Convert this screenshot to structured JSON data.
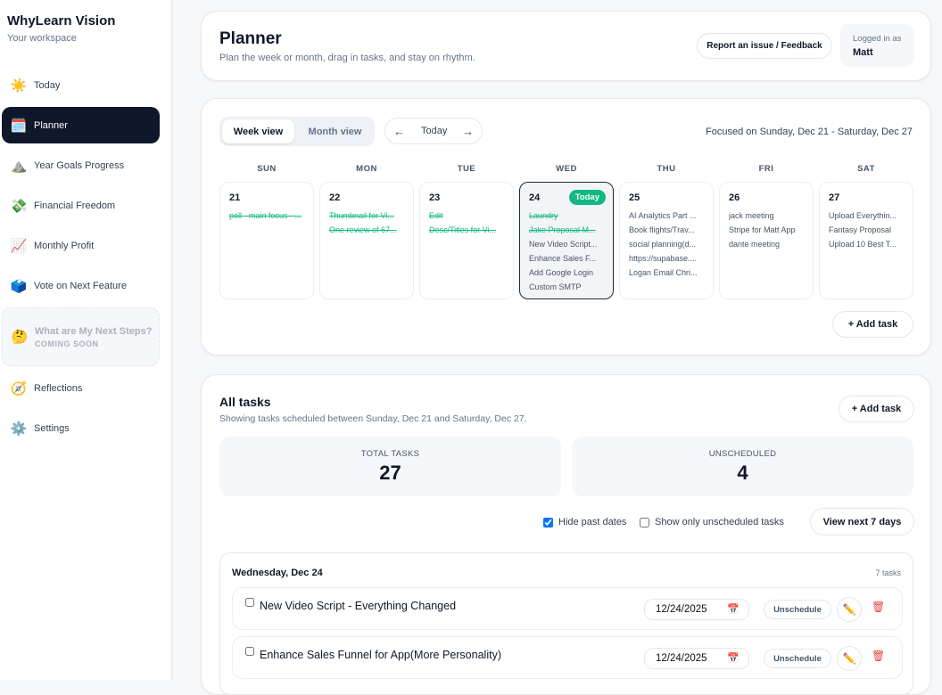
{
  "sidebar": {
    "brand": "WhyLearn Vision",
    "subtitle": "Your workspace",
    "items": [
      {
        "label": "Today",
        "icon": "☀️"
      },
      {
        "label": "Planner",
        "icon": "🗓️"
      },
      {
        "label": "Year Goals Progress",
        "icon": "⛰️"
      },
      {
        "label": "Financial Freedom",
        "icon": "💸"
      },
      {
        "label": "Monthly Profit",
        "icon": "📈"
      },
      {
        "label": "Vote on Next Feature",
        "icon": "🗳️"
      },
      {
        "label": "What are My Next Steps?",
        "sub": "COMING SOON",
        "icon": "🤔"
      },
      {
        "label": "Reflections",
        "icon": "🧭"
      },
      {
        "label": "Settings",
        "icon": "⚙️"
      }
    ]
  },
  "header": {
    "title": "Planner",
    "subtitle": "Plan the week or month, drag in tasks, and stay on rhythm.",
    "report": "Report an issue / Feedback",
    "logged_label": "Logged in as",
    "user": "Matt"
  },
  "calendar": {
    "week_view": "Week view",
    "month_view": "Month view",
    "prev": "←",
    "today": "Today",
    "next": "→",
    "focus": "Focused on Sunday, Dec 21 - Saturday, Dec 27",
    "today_badge": "Today",
    "add_task": "+ Add task",
    "days": [
      {
        "name": "SUN",
        "num": "21",
        "tasks": [
          {
            "t": "poll - main focus - ...",
            "done": true
          }
        ]
      },
      {
        "name": "MON",
        "num": "22",
        "tasks": [
          {
            "t": "Thumbnail for Vi...",
            "done": true
          },
          {
            "t": "One review of 67...",
            "done": true
          }
        ]
      },
      {
        "name": "TUE",
        "num": "23",
        "tasks": [
          {
            "t": "Edit",
            "done": true
          },
          {
            "t": "Desc/Titles for Vi...",
            "done": true
          }
        ]
      },
      {
        "name": "WED",
        "num": "24",
        "today": true,
        "tasks": [
          {
            "t": "Laundry",
            "done": true
          },
          {
            "t": "Jake Proposal M...",
            "done": true
          },
          {
            "t": "New Video Script...",
            "done": false
          },
          {
            "t": "Enhance Sales F...",
            "done": false
          },
          {
            "t": "Add Google Login",
            "done": false
          },
          {
            "t": "Custom SMTP",
            "done": false
          }
        ]
      },
      {
        "name": "THU",
        "num": "25",
        "tasks": [
          {
            "t": "AI Analytics Part ...",
            "done": false
          },
          {
            "t": "Book flights/Trav...",
            "done": false
          },
          {
            "t": "social planning(d...",
            "done": false
          },
          {
            "t": "https://supabase....",
            "done": false
          },
          {
            "t": "Logan Email Chri...",
            "done": false
          }
        ]
      },
      {
        "name": "FRI",
        "num": "26",
        "tasks": [
          {
            "t": "jack meeting",
            "done": false
          },
          {
            "t": "Stripe for Matt App",
            "done": false
          },
          {
            "t": "dante meeting",
            "done": false
          }
        ]
      },
      {
        "name": "SAT",
        "num": "27",
        "tasks": [
          {
            "t": "Upload Everythin...",
            "done": false
          },
          {
            "t": "Fantasy Proposal",
            "done": false
          },
          {
            "t": "Upload 10 Best T...",
            "done": false
          }
        ]
      }
    ]
  },
  "all_tasks": {
    "title": "All tasks",
    "subtitle": "Showing tasks scheduled between Sunday, Dec 21 and Saturday, Dec 27.",
    "add_task": "+ Add task",
    "total_label": "TOTAL TASKS",
    "total": "27",
    "unsched_label": "UNSCHEDULED",
    "unsched": "4",
    "hide_past": "Hide past dates",
    "hide_past_checked": true,
    "only_unsched": "Show only unscheduled tasks",
    "only_unsched_checked": false,
    "view_next": "View next 7 days",
    "group": {
      "title": "Wednesday, Dec 24",
      "count": "7 tasks",
      "tasks": [
        {
          "title": "New Video Script - Everything Changed",
          "date": "12/24/2025",
          "unschedule": "Unschedule"
        },
        {
          "title": "Enhance Sales Funnel for App(More Personality)",
          "date": "12/24/2025",
          "unschedule": "Unschedule"
        }
      ]
    }
  }
}
